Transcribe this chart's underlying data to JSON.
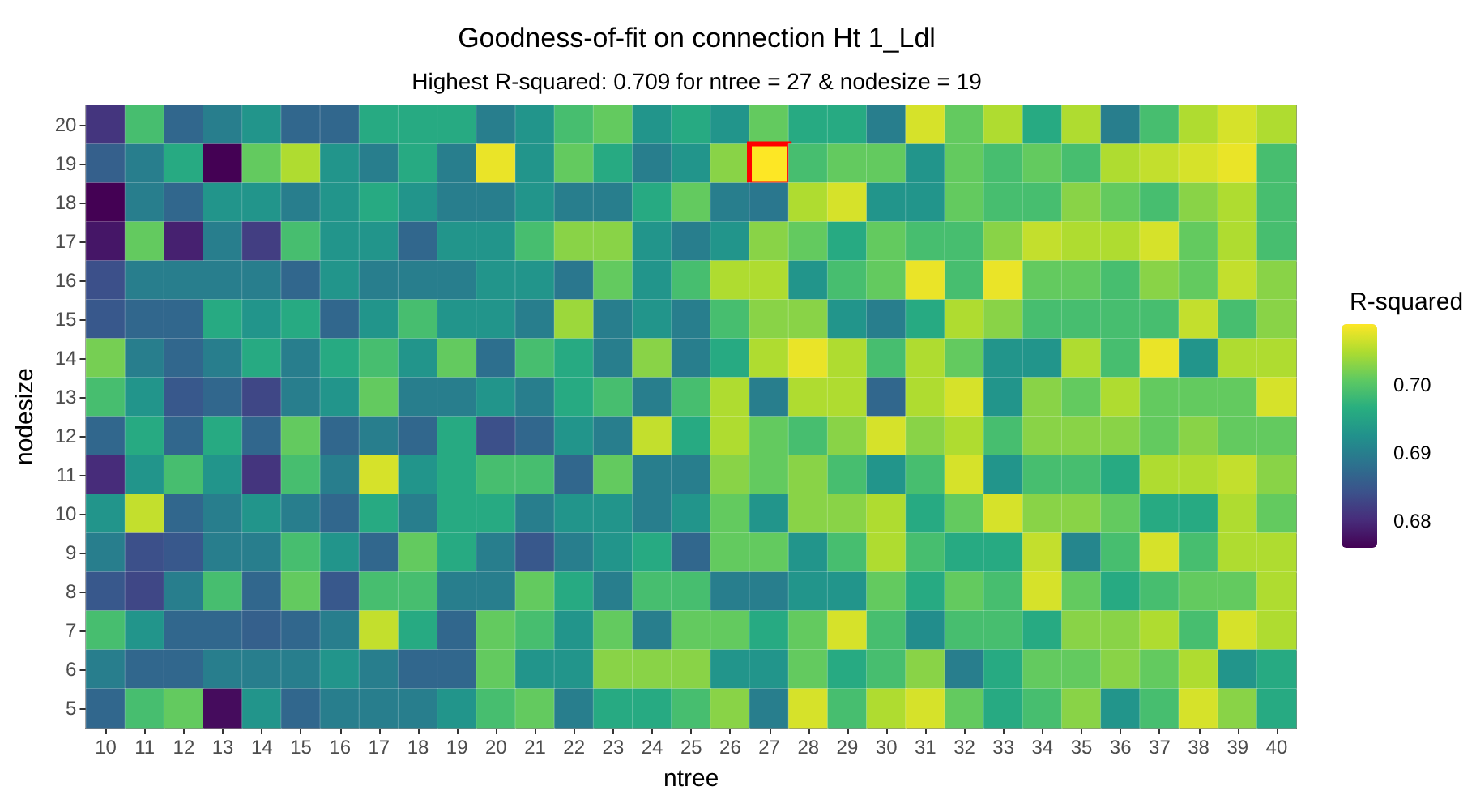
{
  "chart_data": {
    "type": "heatmap",
    "title": "Goodness-of-fit on connection Ht 1_Ldl",
    "subtitle": "Highest R-squared: 0.709 for ntree = 27 & nodesize = 19",
    "xlabel": "ntree",
    "ylabel": "nodesize",
    "clabel": "R-squared",
    "categories": [
      "10",
      "11",
      "12",
      "13",
      "14",
      "15",
      "16",
      "17",
      "18",
      "19",
      "20",
      "21",
      "22",
      "23",
      "24",
      "25",
      "26",
      "27",
      "28",
      "29",
      "30",
      "31",
      "32",
      "33",
      "34",
      "35",
      "36",
      "37",
      "38",
      "39",
      "40"
    ],
    "y_categories": [
      "20",
      "19",
      "18",
      "17",
      "16",
      "15",
      "14",
      "13",
      "12",
      "11",
      "10",
      "9",
      "8",
      "7",
      "6",
      "5"
    ],
    "cells": [
      [
        0.681,
        0.699,
        0.687,
        0.69,
        0.693,
        0.687,
        0.687,
        0.696,
        0.696,
        0.696,
        0.69,
        0.693,
        0.699,
        0.701,
        0.693,
        0.696,
        0.693,
        0.701,
        0.696,
        0.696,
        0.69,
        0.707,
        0.701,
        0.705,
        0.696,
        0.705,
        0.69,
        0.699,
        0.705,
        0.707,
        0.705
      ],
      [
        0.686,
        0.69,
        0.696,
        0.676,
        0.701,
        0.705,
        0.693,
        0.69,
        0.696,
        0.69,
        0.708,
        0.693,
        0.701,
        0.696,
        0.69,
        0.693,
        0.703,
        0.709,
        0.699,
        0.701,
        0.701,
        0.693,
        0.701,
        0.699,
        0.701,
        0.699,
        0.705,
        0.706,
        0.707,
        0.708,
        0.699
      ],
      [
        0.676,
        0.69,
        0.687,
        0.693,
        0.693,
        0.69,
        0.693,
        0.696,
        0.693,
        0.69,
        0.69,
        0.693,
        0.69,
        0.69,
        0.696,
        0.701,
        0.69,
        0.689,
        0.705,
        0.707,
        0.693,
        0.693,
        0.701,
        0.699,
        0.699,
        0.703,
        0.701,
        0.699,
        0.703,
        0.705,
        0.699
      ],
      [
        0.678,
        0.701,
        0.679,
        0.69,
        0.682,
        0.699,
        0.693,
        0.693,
        0.687,
        0.693,
        0.693,
        0.699,
        0.703,
        0.703,
        0.693,
        0.69,
        0.693,
        0.703,
        0.701,
        0.696,
        0.701,
        0.699,
        0.699,
        0.703,
        0.706,
        0.705,
        0.705,
        0.707,
        0.701,
        0.705,
        0.699
      ],
      [
        0.684,
        0.69,
        0.69,
        0.69,
        0.69,
        0.687,
        0.693,
        0.69,
        0.69,
        0.69,
        0.693,
        0.693,
        0.689,
        0.701,
        0.693,
        0.699,
        0.705,
        0.705,
        0.693,
        0.699,
        0.701,
        0.708,
        0.699,
        0.708,
        0.701,
        0.701,
        0.699,
        0.703,
        0.701,
        0.706,
        0.703
      ],
      [
        0.685,
        0.687,
        0.687,
        0.696,
        0.693,
        0.696,
        0.687,
        0.693,
        0.699,
        0.693,
        0.693,
        0.69,
        0.704,
        0.69,
        0.693,
        0.69,
        0.699,
        0.703,
        0.703,
        0.693,
        0.69,
        0.696,
        0.705,
        0.703,
        0.699,
        0.699,
        0.699,
        0.699,
        0.706,
        0.699,
        0.703
      ],
      [
        0.702,
        0.69,
        0.687,
        0.69,
        0.696,
        0.69,
        0.696,
        0.699,
        0.693,
        0.701,
        0.688,
        0.699,
        0.696,
        0.69,
        0.703,
        0.69,
        0.696,
        0.705,
        0.708,
        0.705,
        0.699,
        0.705,
        0.701,
        0.693,
        0.693,
        0.705,
        0.699,
        0.708,
        0.693,
        0.705,
        0.705
      ],
      [
        0.699,
        0.693,
        0.685,
        0.687,
        0.683,
        0.69,
        0.693,
        0.701,
        0.69,
        0.69,
        0.693,
        0.69,
        0.696,
        0.699,
        0.69,
        0.699,
        0.705,
        0.69,
        0.705,
        0.705,
        0.687,
        0.705,
        0.707,
        0.693,
        0.703,
        0.701,
        0.705,
        0.701,
        0.701,
        0.701,
        0.707
      ],
      [
        0.687,
        0.696,
        0.687,
        0.696,
        0.687,
        0.701,
        0.687,
        0.69,
        0.687,
        0.696,
        0.684,
        0.687,
        0.693,
        0.69,
        0.706,
        0.696,
        0.705,
        0.701,
        0.699,
        0.703,
        0.707,
        0.703,
        0.705,
        0.699,
        0.703,
        0.703,
        0.703,
        0.701,
        0.703,
        0.701,
        0.701
      ],
      [
        0.68,
        0.693,
        0.699,
        0.693,
        0.681,
        0.699,
        0.69,
        0.707,
        0.693,
        0.696,
        0.699,
        0.699,
        0.687,
        0.701,
        0.69,
        0.69,
        0.703,
        0.701,
        0.703,
        0.699,
        0.693,
        0.699,
        0.707,
        0.693,
        0.699,
        0.699,
        0.696,
        0.705,
        0.705,
        0.706,
        0.703
      ],
      [
        0.693,
        0.706,
        0.687,
        0.69,
        0.693,
        0.69,
        0.687,
        0.696,
        0.69,
        0.696,
        0.696,
        0.69,
        0.693,
        0.693,
        0.69,
        0.693,
        0.701,
        0.693,
        0.703,
        0.703,
        0.705,
        0.696,
        0.701,
        0.707,
        0.703,
        0.703,
        0.701,
        0.696,
        0.696,
        0.705,
        0.701
      ],
      [
        0.69,
        0.684,
        0.685,
        0.69,
        0.69,
        0.699,
        0.693,
        0.687,
        0.701,
        0.696,
        0.69,
        0.685,
        0.69,
        0.693,
        0.696,
        0.687,
        0.701,
        0.701,
        0.693,
        0.699,
        0.705,
        0.699,
        0.696,
        0.696,
        0.706,
        0.691,
        0.699,
        0.707,
        0.699,
        0.705,
        0.705
      ],
      [
        0.685,
        0.683,
        0.69,
        0.699,
        0.687,
        0.701,
        0.685,
        0.699,
        0.699,
        0.69,
        0.69,
        0.701,
        0.696,
        0.69,
        0.699,
        0.699,
        0.69,
        0.69,
        0.693,
        0.693,
        0.701,
        0.696,
        0.701,
        0.699,
        0.707,
        0.701,
        0.696,
        0.699,
        0.701,
        0.701,
        0.705
      ],
      [
        0.699,
        0.693,
        0.687,
        0.687,
        0.686,
        0.687,
        0.69,
        0.706,
        0.696,
        0.687,
        0.701,
        0.699,
        0.693,
        0.701,
        0.69,
        0.701,
        0.701,
        0.696,
        0.701,
        0.707,
        0.699,
        0.692,
        0.699,
        0.699,
        0.696,
        0.703,
        0.703,
        0.705,
        0.699,
        0.707,
        0.705
      ],
      [
        0.69,
        0.687,
        0.687,
        0.69,
        0.69,
        0.69,
        0.693,
        0.69,
        0.687,
        0.687,
        0.701,
        0.693,
        0.693,
        0.703,
        0.703,
        0.703,
        0.693,
        0.693,
        0.701,
        0.696,
        0.699,
        0.703,
        0.69,
        0.696,
        0.701,
        0.701,
        0.703,
        0.701,
        0.705,
        0.693,
        0.696
      ],
      [
        0.687,
        0.699,
        0.701,
        0.677,
        0.693,
        0.687,
        0.69,
        0.69,
        0.69,
        0.693,
        0.699,
        0.701,
        0.69,
        0.696,
        0.696,
        0.699,
        0.703,
        0.69,
        0.707,
        0.699,
        0.705,
        0.707,
        0.701,
        0.696,
        0.699,
        0.703,
        0.693,
        0.699,
        0.707,
        0.703,
        0.696
      ]
    ],
    "clim": [
      0.676,
      0.709
    ],
    "cticks": [
      {
        "value": 0.68,
        "label": "0.68"
      },
      {
        "value": 0.69,
        "label": "0.69"
      },
      {
        "value": 0.7,
        "label": "0.70"
      }
    ]
  }
}
